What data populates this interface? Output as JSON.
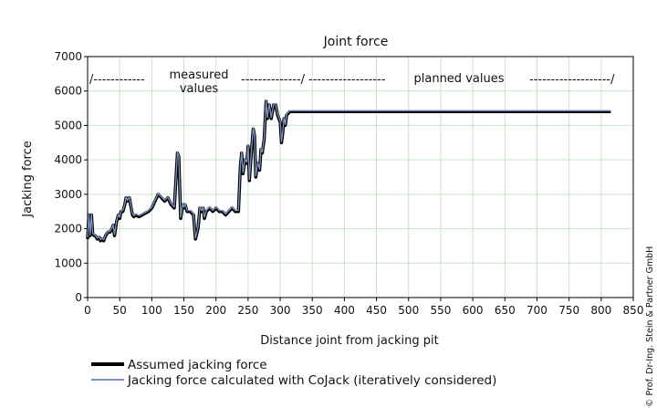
{
  "chart_data": {
    "type": "line",
    "title": "Joint force",
    "xlabel": "Distance joint from jacking pit",
    "ylabel": "Jacking force",
    "xlim": [
      0,
      850
    ],
    "ylim": [
      0,
      7000
    ],
    "x_ticks": [
      0,
      50,
      100,
      150,
      200,
      250,
      300,
      350,
      400,
      450,
      500,
      550,
      600,
      650,
      700,
      750,
      800,
      850
    ],
    "y_ticks": [
      0,
      1000,
      2000,
      3000,
      4000,
      5000,
      6000,
      7000
    ],
    "x_tick_labels": [
      "0",
      "50",
      "100",
      "150",
      "200",
      "250",
      "300",
      "350",
      "400",
      "450",
      "500",
      "550",
      "600",
      "650",
      "700",
      "750",
      "800",
      "850"
    ],
    "y_tick_labels": [
      "0",
      "1000",
      "2000",
      "3000",
      "4000",
      "5000",
      "6000",
      "7000"
    ],
    "grid": true,
    "legend_position": "bottom-left",
    "annotations": {
      "measured_label": "measured values",
      "measured_text": "/-------------measured values ---------------/",
      "planned_text": "------------------ planned values -------------------/"
    },
    "series": [
      {
        "name": "Assumed jacking force",
        "color": "#000000",
        "x": [
          0,
          2,
          4,
          6,
          8,
          10,
          12,
          15,
          18,
          20,
          22,
          25,
          28,
          30,
          32,
          35,
          38,
          40,
          42,
          45,
          48,
          50,
          52,
          55,
          58,
          60,
          62,
          65,
          68,
          70,
          72,
          75,
          80,
          85,
          90,
          95,
          100,
          105,
          110,
          115,
          120,
          125,
          130,
          135,
          140,
          142,
          145,
          148,
          150,
          152,
          155,
          160,
          165,
          168,
          172,
          175,
          178,
          180,
          182,
          185,
          190,
          195,
          200,
          205,
          210,
          215,
          220,
          225,
          230,
          235,
          238,
          240,
          242,
          245,
          248,
          250,
          252,
          255,
          258,
          260,
          262,
          265,
          268,
          270,
          272,
          275,
          278,
          280,
          283,
          286,
          290,
          293,
          296,
          300,
          302,
          304,
          306,
          308,
          310,
          315,
          320,
          330,
          350,
          400,
          450,
          500,
          550,
          600,
          650,
          700,
          750,
          800,
          815
        ],
        "y": [
          1700,
          2400,
          1800,
          2400,
          1850,
          1800,
          1800,
          1700,
          1750,
          1650,
          1700,
          1650,
          1800,
          1850,
          1900,
          1900,
          2000,
          2100,
          1800,
          2200,
          2400,
          2300,
          2500,
          2500,
          2700,
          2900,
          2800,
          2900,
          2600,
          2400,
          2350,
          2400,
          2350,
          2400,
          2450,
          2500,
          2600,
          2800,
          3000,
          2900,
          2800,
          2900,
          2700,
          2600,
          4200,
          4100,
          2300,
          2700,
          2600,
          2700,
          2500,
          2500,
          2400,
          1700,
          2000,
          2600,
          2500,
          2600,
          2300,
          2500,
          2600,
          2500,
          2600,
          2500,
          2500,
          2400,
          2500,
          2600,
          2500,
          2500,
          3800,
          4200,
          3600,
          4000,
          3900,
          4400,
          3400,
          4200,
          4900,
          4700,
          3500,
          3900,
          3700,
          4300,
          4200,
          4600,
          5700,
          5200,
          5600,
          5200,
          5600,
          5600,
          5300,
          5100,
          4500,
          4800,
          5200,
          5000,
          5300,
          5400,
          5400,
          5400,
          5400,
          5400,
          5400,
          5400,
          5400,
          5400,
          5400,
          5400,
          5400,
          5400,
          5400
        ]
      },
      {
        "name": "Jacking force calculated with CoJack (iteratively considered)",
        "color": "#7f93c0",
        "x": [
          0,
          2,
          4,
          6,
          8,
          10,
          12,
          15,
          18,
          20,
          22,
          25,
          28,
          30,
          32,
          35,
          38,
          40,
          42,
          45,
          48,
          50,
          52,
          55,
          58,
          60,
          62,
          65,
          68,
          70,
          72,
          75,
          80,
          85,
          90,
          95,
          100,
          105,
          110,
          115,
          120,
          125,
          130,
          135,
          140,
          142,
          145,
          148,
          150,
          152,
          155,
          160,
          165,
          168,
          172,
          175,
          178,
          180,
          182,
          185,
          190,
          195,
          200,
          205,
          210,
          215,
          220,
          225,
          230,
          235,
          238,
          240,
          242,
          245,
          248,
          250,
          252,
          255,
          258,
          260,
          262,
          265,
          268,
          270,
          272,
          275,
          278,
          280,
          283,
          286,
          290,
          293,
          296,
          300,
          302,
          304,
          306,
          308,
          310,
          315,
          320,
          330,
          350,
          400,
          450,
          500,
          550,
          600,
          650,
          700,
          750,
          800,
          815
        ],
        "y": [
          1750,
          2420,
          1820,
          2420,
          1870,
          1830,
          1820,
          1730,
          1770,
          1680,
          1720,
          1680,
          1820,
          1870,
          1920,
          1930,
          2020,
          2120,
          1830,
          2220,
          2420,
          2330,
          2520,
          2530,
          2720,
          2920,
          2830,
          2920,
          2630,
          2430,
          2380,
          2430,
          2380,
          2430,
          2470,
          2530,
          2630,
          2830,
          3020,
          2930,
          2830,
          2920,
          2730,
          2630,
          4220,
          4130,
          2330,
          2730,
          2630,
          2730,
          2530,
          2530,
          2430,
          1730,
          2030,
          2630,
          2530,
          2630,
          2330,
          2530,
          2630,
          2530,
          2630,
          2530,
          2530,
          2430,
          2530,
          2630,
          2530,
          2530,
          3830,
          4230,
          3630,
          4030,
          3930,
          4430,
          3430,
          4230,
          4930,
          4730,
          3530,
          3930,
          3730,
          4330,
          4230,
          4630,
          5730,
          5230,
          5630,
          5230,
          5630,
          5630,
          5330,
          5130,
          4530,
          4830,
          5230,
          5030,
          5330,
          5430,
          5430,
          5430,
          5430,
          5430,
          5430,
          5430,
          5430,
          5430,
          5430,
          5430,
          5430,
          5430,
          5430
        ]
      }
    ]
  },
  "legend": {
    "items": [
      {
        "label": "Assumed jacking force",
        "color": "#000000"
      },
      {
        "label": "Jacking force calculated with CoJack (iteratively considered)",
        "color": "#7f93c0"
      }
    ]
  },
  "side_text": "© Prof. Dr-Ing. Stein & Partner GmbH"
}
